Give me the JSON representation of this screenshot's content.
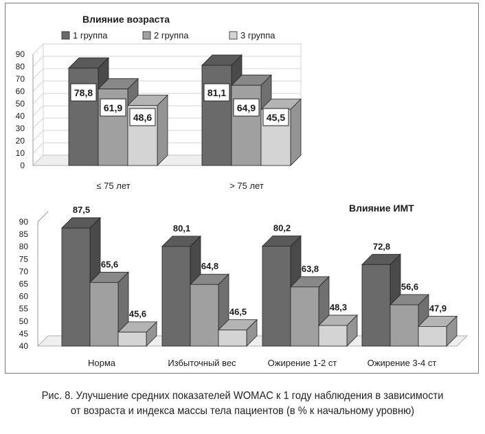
{
  "figure": {
    "caption_line1": "Рис. 8. Улучшение средних показателей WOMAC к 1 году наблюдения в зависимости",
    "caption_line2": "от возраста и индекса массы тела пациентов (в % к начальному уровню)"
  },
  "colors": {
    "group1": "#6a6a6a",
    "group2": "#a0a0a0",
    "group3": "#d4d4d4"
  },
  "chart_data": [
    {
      "type": "bar",
      "title": "Влияние возраста",
      "categories": [
        "≤ 75 лет",
        "> 75 лет"
      ],
      "series": [
        {
          "name": "1 группа",
          "values": [
            78.8,
            81.1
          ]
        },
        {
          "name": "2 группа",
          "values": [
            61.9,
            64.9
          ]
        },
        {
          "name": "3 группа",
          "values": [
            48.6,
            45.5
          ]
        }
      ],
      "data_labels": [
        [
          "78,8",
          "81,1"
        ],
        [
          "61,9",
          "64,9"
        ],
        [
          "48,6",
          "45,5"
        ]
      ],
      "yticks": [
        "0",
        "10",
        "20",
        "30",
        "40",
        "50",
        "60",
        "70",
        "80",
        "90"
      ],
      "ylim": [
        0,
        90
      ],
      "legend": "top",
      "grid": true
    },
    {
      "type": "bar",
      "title": "Влияние ИМТ",
      "categories": [
        "Норма",
        "Избыточный вес",
        "Ожирение 1-2 ст",
        "Ожирение 3-4 ст"
      ],
      "series": [
        {
          "values": [
            87.5,
            80.1,
            80.2,
            72.8
          ]
        },
        {
          "values": [
            65.6,
            64.8,
            63.8,
            56.6
          ]
        },
        {
          "values": [
            45.6,
            46.5,
            48.3,
            47.9
          ]
        }
      ],
      "data_labels": [
        [
          "87,5",
          "80,1",
          "80,2",
          "72,8"
        ],
        [
          "65,6",
          "64,8",
          "63,8",
          "56,6"
        ],
        [
          "45,6",
          "46,5",
          "48,3",
          "47,9"
        ]
      ],
      "yticks": [
        "40",
        "45",
        "50",
        "55",
        "60",
        "65",
        "70",
        "75",
        "80",
        "85",
        "90"
      ],
      "ylim": [
        40,
        90
      ],
      "grid": false
    }
  ]
}
